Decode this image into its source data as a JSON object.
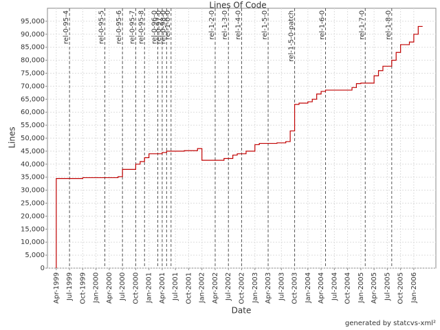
{
  "chart_data": {
    "type": "line",
    "title": "Lines Of Code",
    "xlabel": "Date",
    "ylabel": "Lines",
    "color": "#c00000",
    "grid": true,
    "x": [
      "1999-04",
      "1999-04",
      "1999-10",
      "2000-06",
      "2000-07",
      "2000-10",
      "2000-11",
      "2000-12",
      "2001-01",
      "2001-04",
      "2001-05",
      "2001-09",
      "2001-12",
      "2002-01",
      "2002-06",
      "2002-08",
      "2002-09",
      "2002-11",
      "2003-01",
      "2003-02",
      "2003-06",
      "2003-08",
      "2003-09",
      "2003-10",
      "2003-11",
      "2004-01",
      "2004-02",
      "2004-03",
      "2004-04",
      "2004-05",
      "2004-11",
      "2004-12",
      "2005-01",
      "2005-04",
      "2005-05",
      "2005-06",
      "2005-08",
      "2005-09",
      "2005-10",
      "2005-12",
      "2006-01",
      "2006-02",
      "2006-03"
    ],
    "values": [
      0,
      34500,
      34800,
      35200,
      38000,
      40000,
      41000,
      42500,
      44000,
      44500,
      45000,
      45200,
      46000,
      41500,
      42200,
      43500,
      44000,
      45000,
      47500,
      48000,
      48200,
      48700,
      52800,
      63000,
      63500,
      64000,
      65000,
      67000,
      68000,
      68500,
      69500,
      71000,
      71200,
      74000,
      76000,
      77700,
      80000,
      83000,
      86000,
      87000,
      90000,
      93000,
      93000
    ],
    "xlim": [
      "1999-02",
      "2006-06"
    ],
    "xticks": [
      {
        "value": "1999-04",
        "label": "Apr-1999"
      },
      {
        "value": "1999-07",
        "label": "Jul-1999"
      },
      {
        "value": "1999-10",
        "label": "Oct-1999"
      },
      {
        "value": "2000-01",
        "label": "Jan-2000"
      },
      {
        "value": "2000-04",
        "label": "Apr-2000"
      },
      {
        "value": "2000-07",
        "label": "Jul-2000"
      },
      {
        "value": "2000-10",
        "label": "Oct-2000"
      },
      {
        "value": "2001-01",
        "label": "Jan-2001"
      },
      {
        "value": "2001-04",
        "label": "Apr-2001"
      },
      {
        "value": "2001-07",
        "label": "Jul-2001"
      },
      {
        "value": "2001-10",
        "label": "Oct-2001"
      },
      {
        "value": "2002-01",
        "label": "Jan-2002"
      },
      {
        "value": "2002-04",
        "label": "Apr-2002"
      },
      {
        "value": "2002-07",
        "label": "Jul-2002"
      },
      {
        "value": "2002-10",
        "label": "Oct-2002"
      },
      {
        "value": "2003-01",
        "label": "Jan-2003"
      },
      {
        "value": "2003-04",
        "label": "Apr-2003"
      },
      {
        "value": "2003-07",
        "label": "Jul-2003"
      },
      {
        "value": "2003-10",
        "label": "Oct-2003"
      },
      {
        "value": "2004-01",
        "label": "Jan-2004"
      },
      {
        "value": "2004-04",
        "label": "Apr-2004"
      },
      {
        "value": "2004-07",
        "label": "Jul-2004"
      },
      {
        "value": "2004-10",
        "label": "Oct-2004"
      },
      {
        "value": "2005-01",
        "label": "Jan-2005"
      },
      {
        "value": "2005-04",
        "label": "Apr-2005"
      },
      {
        "value": "2005-07",
        "label": "Jul-2005"
      },
      {
        "value": "2005-10",
        "label": "Oct-2005"
      },
      {
        "value": "2006-01",
        "label": "Jan-2006"
      }
    ],
    "ylim": [
      0,
      100000
    ],
    "yticks": [
      0,
      {
        "value": 5000,
        "label": "5,000"
      },
      {
        "value": 10000,
        "label": "10,000"
      },
      {
        "value": 15000,
        "label": "15,000"
      },
      {
        "value": 20000,
        "label": "20,000"
      },
      {
        "value": 25000,
        "label": "25,000"
      },
      {
        "value": 30000,
        "label": "30,000"
      },
      {
        "value": 35000,
        "label": "35,000"
      },
      {
        "value": 40000,
        "label": "40,000"
      },
      {
        "value": 45000,
        "label": "45,000"
      },
      {
        "value": 50000,
        "label": "50,000"
      },
      {
        "value": 55000,
        "label": "55,000"
      },
      {
        "value": 60000,
        "label": "60,000"
      },
      {
        "value": 65000,
        "label": "65,000"
      },
      {
        "value": 70000,
        "label": "70,000"
      },
      {
        "value": 75000,
        "label": "75,000"
      },
      {
        "value": 80000,
        "label": "80,000"
      },
      {
        "value": 85000,
        "label": "85,000"
      },
      {
        "value": 90000,
        "label": "90,000"
      },
      {
        "value": 95000,
        "label": "95,000"
      }
    ],
    "markers": [
      {
        "x": "1999-07",
        "label": "rel-0-95-4"
      },
      {
        "x": "2000-03",
        "label": "rel-0-95-5"
      },
      {
        "x": "2000-07",
        "label": "rel-0-95-6"
      },
      {
        "x": "2000-10",
        "label": "rel-0-95-7"
      },
      {
        "x": "2000-12",
        "label": "rel-0-95-8"
      },
      {
        "x": "2001-03",
        "label": "rel-0-96-0"
      },
      {
        "x": "2001-04",
        "label": "rel-0-97-0"
      },
      {
        "x": "2001-05",
        "label": "rel-0-98-0"
      },
      {
        "x": "2001-06",
        "label": "rel-1-0-0"
      },
      {
        "x": "2002-04",
        "label": "rel-1-2-0"
      },
      {
        "x": "2002-07",
        "label": "rel-1-3-0"
      },
      {
        "x": "2002-10",
        "label": "rel-1-4-0"
      },
      {
        "x": "2003-04",
        "label": "rel-1-5-0"
      },
      {
        "x": "2003-10",
        "label": "rel-1-5-0-patch"
      },
      {
        "x": "2004-05",
        "label": "rel-1-6-0"
      },
      {
        "x": "2005-02",
        "label": "rel-1-7-0"
      },
      {
        "x": "2005-08",
        "label": "rel-1-8-0"
      }
    ],
    "footer": "generated by statcvs-xml²"
  }
}
